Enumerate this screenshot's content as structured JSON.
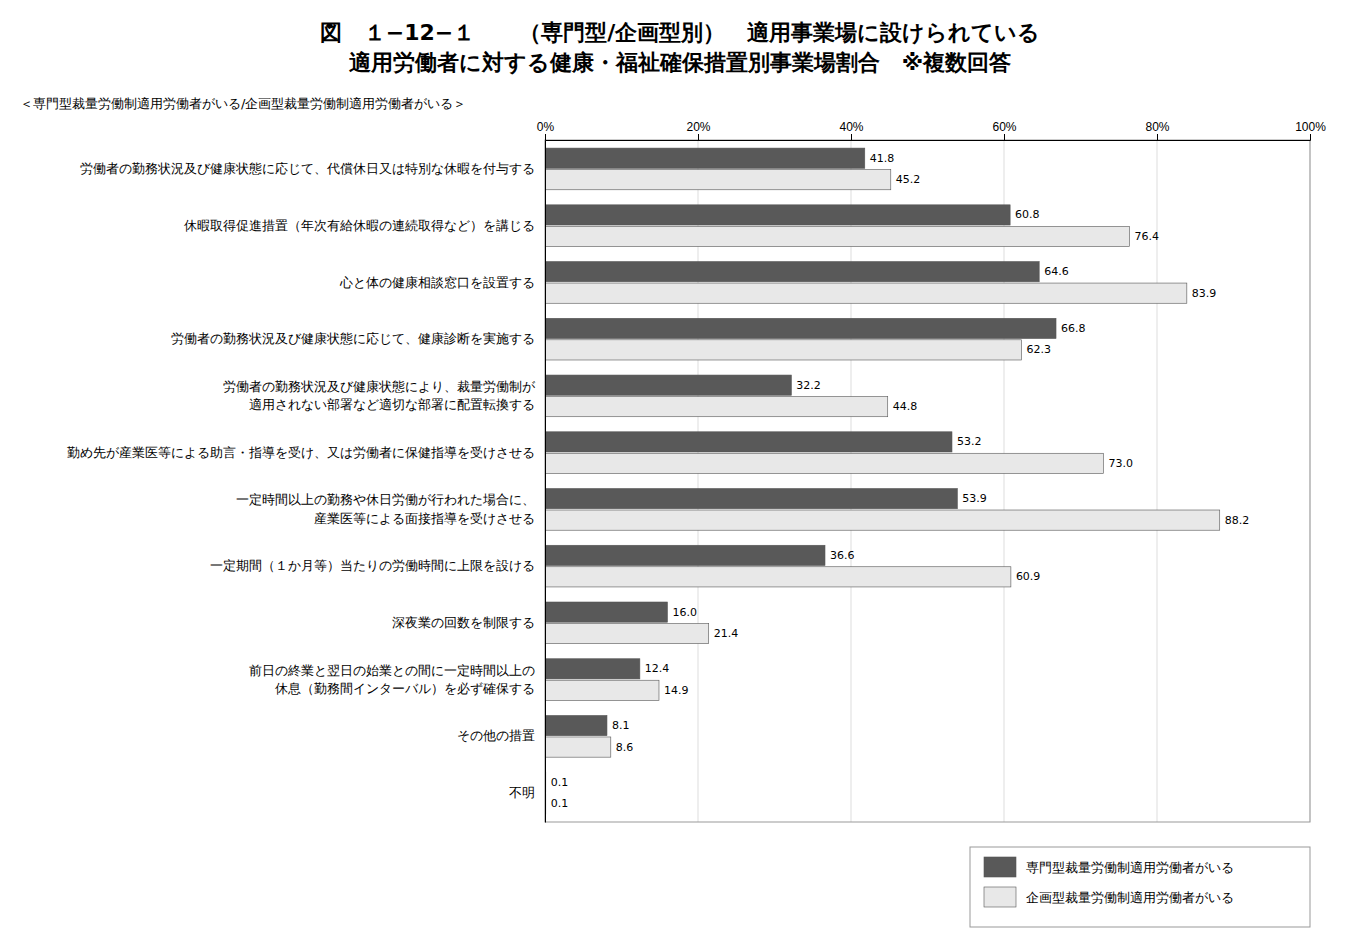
{
  "chart_data": {
    "type": "bar",
    "orientation": "horizontal",
    "title": "図　１−12−１　　（専門型/企画型別）　適用事業場に設けられている\n適用労働者に対する健康・福祉確保措置別事業場割合　※複数回答",
    "subtitle": "＜専門型裁量労働制適用労働者がいる/企画型裁量労働制適用労働者がいる＞",
    "categories": [
      "労働者の勤務状況及び健康状態に応じて、代償休日又は特別な休暇を付与する",
      "休暇取得促進措置（年次有給休暇の連続取得など）を講じる",
      "心と体の健康相談窓口を設置する",
      "労働者の勤務状況及び健康状態に応じて、健康診断を実施する",
      "労働者の勤務状況及び健康状態により、裁量労働制が\n適用されない部署など適切な部署に配置転換する",
      "勤め先が産業医等による助言・指導を受け、又は労働者に保健指導を受けさせる",
      "一定時間以上の勤務や休日労働が行われた場合に、\n産業医等による面接指導を受けさせる",
      "一定期間（１か月等）当たりの労働時間に上限を設ける",
      "深夜業の回数を制限する",
      "前日の終業と翌日の始業との間に一定時間以上の\n休息（勤務間インターバル）を必ず確保する",
      "その他の措置",
      "不明"
    ],
    "series": [
      {
        "name": "専門型裁量労働制適用労働者がいる",
        "color": "#595959",
        "values": [
          41.8,
          60.8,
          64.6,
          66.8,
          32.2,
          53.2,
          53.9,
          36.6,
          16.0,
          12.4,
          8.1,
          0.1
        ],
        "value_labels": [
          "41.8",
          "60.8",
          "64.6",
          "66.8",
          "32.2",
          "53.2",
          "53.9",
          "36.6",
          "16.0",
          "12.4",
          "8.1",
          "0.1"
        ]
      },
      {
        "name": "企画型裁量労働制適用労働者がいる",
        "color": "#e8e8e8",
        "values": [
          45.2,
          76.4,
          83.9,
          62.3,
          44.8,
          73.0,
          88.2,
          60.9,
          21.4,
          14.9,
          8.6,
          0.1
        ],
        "value_labels": [
          "45.2",
          "76.4",
          "83.9",
          "62.3",
          "44.8",
          "73.0",
          "88.2",
          "60.9",
          "21.4",
          "14.9",
          "8.6",
          "0.1"
        ]
      }
    ],
    "xlim": [
      0,
      100
    ],
    "xticks": [
      {
        "value": 0,
        "label": "0%"
      },
      {
        "value": 20,
        "label": "20%"
      },
      {
        "value": 40,
        "label": "40%"
      },
      {
        "value": 60,
        "label": "60%"
      },
      {
        "value": 80,
        "label": "80%"
      },
      {
        "value": 100,
        "label": "100%"
      }
    ],
    "grid": true,
    "data_labels": true,
    "legend": "lower right"
  }
}
